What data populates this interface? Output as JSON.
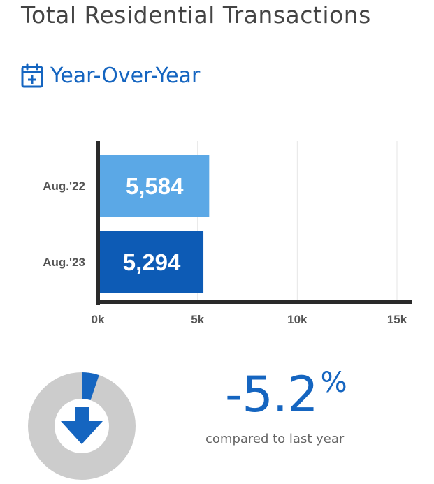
{
  "title": "Total Residential Transactions",
  "subtitle": "Year-Over-Year",
  "colors": {
    "accent": "#1565c0",
    "bar_2022": "#5ba8e6",
    "bar_2023": "#0d5bb5",
    "axis": "#2a2a2a",
    "donut_track": "#cccccc",
    "donut_change": "#1565c0"
  },
  "icons": {
    "subtitle_icon": "calendar-plus-icon",
    "change_icon": "arrow-down-icon"
  },
  "chart_data": {
    "type": "bar",
    "orientation": "horizontal",
    "categories": [
      "Aug.'22",
      "Aug.'23"
    ],
    "values": [
      5584,
      5294
    ],
    "value_labels": [
      "5,584",
      "5,294"
    ],
    "xlim": [
      0,
      15000
    ],
    "x_ticks": [
      0,
      5000,
      10000,
      15000
    ],
    "x_tick_labels": [
      "0k",
      "5k",
      "10k",
      "15k"
    ],
    "grid": true
  },
  "change": {
    "value": "-5.2",
    "symbol": "%",
    "fraction": 0.052,
    "caption": "compared to last year"
  }
}
